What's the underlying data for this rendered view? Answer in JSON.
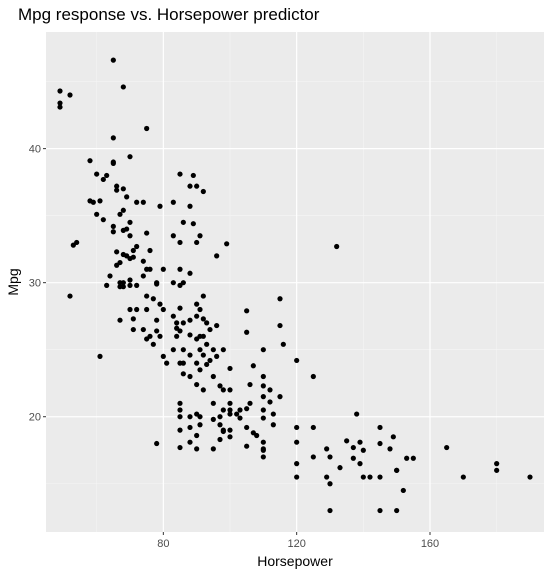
{
  "chart_data": {
    "type": "scatter",
    "title": "Mpg response vs. Horsepower predictor",
    "xlabel": "Horsepower",
    "ylabel": "Mpg",
    "xlim": [
      44.8,
      194.2
    ],
    "ylim": [
      11.4,
      48.7
    ],
    "x_ticks": [
      80,
      120,
      160
    ],
    "y_ticks": [
      20,
      30,
      40
    ],
    "grid": true,
    "background": "#ebebeb",
    "point_color": "#000000",
    "points": [
      [
        49,
        44.3
      ],
      [
        49,
        43.4
      ],
      [
        49,
        43.1
      ],
      [
        52,
        44.0
      ],
      [
        52,
        29.0
      ],
      [
        53,
        32.8
      ],
      [
        54,
        33.0
      ],
      [
        58,
        39.1
      ],
      [
        58,
        36.1
      ],
      [
        59,
        36.0
      ],
      [
        60,
        35.1
      ],
      [
        60,
        38.1
      ],
      [
        61,
        36.1
      ],
      [
        61,
        24.5
      ],
      [
        62,
        37.7
      ],
      [
        62,
        34.7
      ],
      [
        63,
        38.0
      ],
      [
        63,
        29.8
      ],
      [
        64,
        30.5
      ],
      [
        65,
        38.9
      ],
      [
        65,
        34.2
      ],
      [
        65,
        33.8
      ],
      [
        65,
        46.6
      ],
      [
        65,
        40.8
      ],
      [
        65,
        39.0
      ],
      [
        66,
        37.2
      ],
      [
        66,
        36.9
      ],
      [
        66,
        32.3
      ],
      [
        66,
        31.3
      ],
      [
        67,
        35.1
      ],
      [
        67,
        31.5
      ],
      [
        67,
        30.0
      ],
      [
        67,
        29.7
      ],
      [
        67,
        27.2
      ],
      [
        68,
        44.6
      ],
      [
        68,
        37.0
      ],
      [
        68,
        35.4
      ],
      [
        68,
        33.9
      ],
      [
        68,
        32.1
      ],
      [
        68,
        30.0
      ],
      [
        68,
        29.7
      ],
      [
        69,
        36.4
      ],
      [
        69,
        34.0
      ],
      [
        69,
        32.0
      ],
      [
        70,
        39.4
      ],
      [
        70,
        34.5
      ],
      [
        70,
        33.5
      ],
      [
        70,
        31.8
      ],
      [
        70,
        30.2
      ],
      [
        70,
        29.8
      ],
      [
        70,
        28.0
      ],
      [
        71,
        32.4
      ],
      [
        71,
        31.9
      ],
      [
        71,
        27.3
      ],
      [
        71,
        26.5
      ],
      [
        72,
        36.0
      ],
      [
        72,
        32.7
      ],
      [
        72,
        29.8
      ],
      [
        72,
        28.0
      ],
      [
        74,
        36.0
      ],
      [
        74,
        31.6
      ],
      [
        74,
        30.5
      ],
      [
        74,
        26.5
      ],
      [
        75,
        41.5
      ],
      [
        75,
        33.7
      ],
      [
        75,
        31.0
      ],
      [
        75,
        29.0
      ],
      [
        75,
        28.0
      ],
      [
        75,
        25.8
      ],
      [
        76,
        32.4
      ],
      [
        76,
        31.0
      ],
      [
        76,
        26.0
      ],
      [
        77,
        28.8
      ],
      [
        77,
        25.4
      ],
      [
        78,
        30.0
      ],
      [
        78,
        29.9
      ],
      [
        78,
        27.2
      ],
      [
        78,
        26.4
      ],
      [
        78,
        18.0
      ],
      [
        79,
        35.7
      ],
      [
        79,
        28.4
      ],
      [
        79,
        26.0
      ],
      [
        80,
        31.0
      ],
      [
        80,
        28.0
      ],
      [
        80,
        24.5
      ],
      [
        81,
        24.0
      ],
      [
        83,
        36.0
      ],
      [
        83,
        33.5
      ],
      [
        83,
        30.0
      ],
      [
        83,
        27.5
      ],
      [
        83,
        25.0
      ],
      [
        84,
        27.0
      ],
      [
        84,
        26.6
      ],
      [
        84,
        26.0
      ],
      [
        85,
        38.1
      ],
      [
        85,
        33.0
      ],
      [
        85,
        31.0
      ],
      [
        85,
        29.8
      ],
      [
        85,
        28.1
      ],
      [
        85,
        26.4
      ],
      [
        85,
        24.0
      ],
      [
        85,
        21.0
      ],
      [
        85,
        20.5
      ],
      [
        85,
        20.0
      ],
      [
        85,
        19.0
      ],
      [
        85,
        17.7
      ],
      [
        86,
        34.5
      ],
      [
        86,
        30.0
      ],
      [
        86,
        27.0
      ],
      [
        86,
        25.0
      ],
      [
        86,
        24.0
      ],
      [
        86,
        23.2
      ],
      [
        88,
        37.2
      ],
      [
        88,
        35.7
      ],
      [
        88,
        30.7
      ],
      [
        88,
        27.2
      ],
      [
        88,
        26.1
      ],
      [
        88,
        24.6
      ],
      [
        88,
        23.0
      ],
      [
        88,
        20.0
      ],
      [
        88,
        19.2
      ],
      [
        88,
        18.1
      ],
      [
        89,
        38.0
      ],
      [
        89,
        34.4
      ],
      [
        90,
        37.2
      ],
      [
        90,
        33.0
      ],
      [
        90,
        28.4
      ],
      [
        90,
        27.5
      ],
      [
        90,
        25.8
      ],
      [
        90,
        24.0
      ],
      [
        90,
        22.4
      ],
      [
        90,
        20.2
      ],
      [
        90,
        18.6
      ],
      [
        90,
        17.6
      ],
      [
        91,
        33.5
      ],
      [
        91,
        28.0
      ],
      [
        91,
        26.0
      ],
      [
        91,
        25.0
      ],
      [
        91,
        23.5
      ],
      [
        91,
        20.0
      ],
      [
        91,
        19.4
      ],
      [
        92,
        36.8
      ],
      [
        92,
        29.0
      ],
      [
        92,
        27.3
      ],
      [
        92,
        26.0
      ],
      [
        92,
        24.6
      ],
      [
        92,
        22.0
      ],
      [
        93,
        27.0
      ],
      [
        93,
        25.4
      ],
      [
        93,
        23.9
      ],
      [
        94,
        26.5
      ],
      [
        94,
        24.2
      ],
      [
        95,
        25.0
      ],
      [
        95,
        23.0
      ],
      [
        95,
        21.0
      ],
      [
        95,
        19.8
      ],
      [
        95,
        17.6
      ],
      [
        96,
        32.0
      ],
      [
        96,
        26.8
      ],
      [
        96,
        24.5
      ],
      [
        97,
        22.3
      ],
      [
        97,
        20.0
      ],
      [
        97,
        19.4
      ],
      [
        97,
        18.3
      ],
      [
        98,
        25.0
      ],
      [
        98,
        22.0
      ],
      [
        98,
        20.5
      ],
      [
        98,
        19.0
      ],
      [
        98,
        18.9
      ],
      [
        99,
        32.9
      ],
      [
        100,
        23.6
      ],
      [
        100,
        22.0
      ],
      [
        100,
        21.0
      ],
      [
        100,
        20.5
      ],
      [
        100,
        20.2
      ],
      [
        100,
        19.0
      ],
      [
        100,
        18.5
      ],
      [
        102,
        20.2
      ],
      [
        103,
        20.5
      ],
      [
        103,
        19.9
      ],
      [
        105,
        27.9
      ],
      [
        105,
        26.3
      ],
      [
        105,
        20.6
      ],
      [
        105,
        19.2
      ],
      [
        105,
        17.8
      ],
      [
        106,
        22.4
      ],
      [
        106,
        21.0
      ],
      [
        107,
        23.8
      ],
      [
        107,
        18.8
      ],
      [
        108,
        18.6
      ],
      [
        110,
        25.0
      ],
      [
        110,
        23.0
      ],
      [
        110,
        22.3
      ],
      [
        110,
        21.5
      ],
      [
        110,
        20.5
      ],
      [
        110,
        19.9
      ],
      [
        110,
        18.1
      ],
      [
        110,
        17.6
      ],
      [
        110,
        17.5
      ],
      [
        110,
        17.0
      ],
      [
        112,
        22.0
      ],
      [
        112,
        21.1
      ],
      [
        113,
        20.2
      ],
      [
        113,
        19.4
      ],
      [
        115,
        28.8
      ],
      [
        115,
        26.8
      ],
      [
        115,
        21.5
      ],
      [
        116,
        25.4
      ],
      [
        120,
        24.2
      ],
      [
        120,
        19.2
      ],
      [
        120,
        18.1
      ],
      [
        120,
        16.5
      ],
      [
        120,
        15.5
      ],
      [
        125,
        23.0
      ],
      [
        125,
        19.2
      ],
      [
        125,
        17.0
      ],
      [
        129,
        17.6
      ],
      [
        129,
        15.5
      ],
      [
        130,
        17.0
      ],
      [
        130,
        15.0
      ],
      [
        130,
        13.0
      ],
      [
        132,
        32.7
      ],
      [
        133,
        16.2
      ],
      [
        135,
        18.2
      ],
      [
        137,
        17.7
      ],
      [
        137,
        16.9
      ],
      [
        138,
        20.2
      ],
      [
        139,
        16.5
      ],
      [
        139,
        18.1
      ],
      [
        140,
        17.5
      ],
      [
        140,
        15.5
      ],
      [
        142,
        15.5
      ],
      [
        145,
        18.0
      ],
      [
        145,
        19.2
      ],
      [
        145,
        15.5
      ],
      [
        145,
        13.0
      ],
      [
        148,
        17.6
      ],
      [
        149,
        18.5
      ],
      [
        150,
        16.0
      ],
      [
        150,
        13.0
      ],
      [
        150,
        16.0
      ],
      [
        152,
        14.5
      ],
      [
        153,
        16.9
      ],
      [
        155,
        16.9
      ],
      [
        165,
        17.7
      ],
      [
        170,
        15.5
      ],
      [
        180,
        16.5
      ],
      [
        180,
        16.0
      ],
      [
        190,
        15.5
      ]
    ]
  }
}
